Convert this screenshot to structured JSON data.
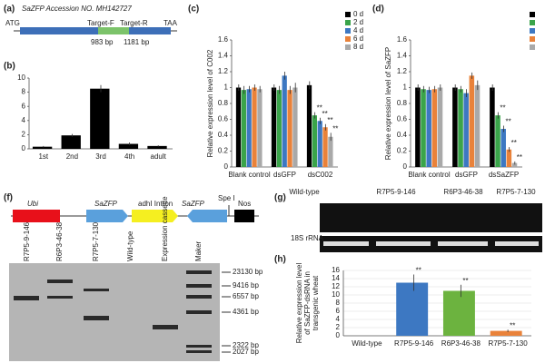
{
  "chart_data": [
    {
      "type": "bar",
      "label": "(b)",
      "categories": [
        "1st",
        "2nd",
        "3rd",
        "4th",
        "adult"
      ],
      "series": [
        {
          "color": "#000000",
          "values": [
            0.3,
            1.9,
            8.5,
            0.7,
            0.4
          ],
          "errors": [
            0.1,
            0.2,
            0.5,
            0.2,
            0.1
          ]
        }
      ],
      "ylim": [
        0,
        10
      ],
      "yticks": [
        0,
        2,
        4,
        6,
        8,
        10
      ]
    },
    {
      "type": "bar",
      "label": "(c)",
      "ylabel": "Relative expression level of C002",
      "categories": [
        "Blank control",
        "dsGFP",
        "dsC002"
      ],
      "series": [
        {
          "name": "0 d",
          "color": "#000000",
          "values": [
            1,
            1,
            1.03
          ],
          "errors": [
            0.04,
            0.04,
            0.05
          ],
          "marks": [
            null,
            null,
            null
          ]
        },
        {
          "name": "2 d",
          "color": "#3aa44a",
          "values": [
            0.97,
            0.97,
            0.65
          ],
          "errors": [
            0.05,
            0.05,
            0.04
          ],
          "marks": [
            null,
            null,
            "**"
          ]
        },
        {
          "name": "4 d",
          "color": "#3d78c2",
          "values": [
            0.98,
            1.15,
            0.58
          ],
          "errors": [
            0.04,
            0.05,
            0.04
          ],
          "marks": [
            null,
            null,
            "**"
          ]
        },
        {
          "name": "6 d",
          "color": "#e9823a",
          "values": [
            1,
            0.97,
            0.5
          ],
          "errors": [
            0.04,
            0.05,
            0.04
          ],
          "marks": [
            null,
            null,
            "**"
          ]
        },
        {
          "name": "8 d",
          "color": "#a9a9a9",
          "values": [
            0.98,
            1,
            0.38
          ],
          "errors": [
            0.04,
            0.06,
            0.05
          ],
          "marks": [
            null,
            null,
            "**"
          ]
        }
      ],
      "ylim": [
        0,
        1.6
      ],
      "yticks": [
        0,
        0.2,
        0.4,
        0.6,
        0.8,
        1,
        1.2,
        1.4,
        1.6
      ],
      "legend": "right"
    },
    {
      "type": "bar",
      "label": "(d)",
      "ylabel": "Relative expression level of SaZFP",
      "categories": [
        "Blank control",
        "dsGFP",
        "dsSaZFP"
      ],
      "series": [
        {
          "color": "#000000",
          "values": [
            1,
            1,
            1
          ],
          "errors": [
            0.04,
            0.04,
            0.04
          ],
          "marks": [
            null,
            null,
            null
          ]
        },
        {
          "color": "#3aa44a",
          "values": [
            0.98,
            0.98,
            0.65
          ],
          "errors": [
            0.04,
            0.04,
            0.04
          ],
          "marks": [
            null,
            null,
            "**"
          ]
        },
        {
          "color": "#3d78c2",
          "values": [
            0.97,
            0.93,
            0.48
          ],
          "errors": [
            0.04,
            0.05,
            0.04
          ],
          "marks": [
            null,
            null,
            "**"
          ]
        },
        {
          "color": "#e9823a",
          "values": [
            0.98,
            1.15,
            0.22
          ],
          "errors": [
            0.04,
            0.04,
            0.03
          ],
          "marks": [
            null,
            null,
            "**"
          ]
        },
        {
          "color": "#a9a9a9",
          "values": [
            1,
            1.03,
            0.05
          ],
          "errors": [
            0.04,
            0.06,
            0.02
          ],
          "marks": [
            null,
            null,
            "**"
          ]
        }
      ],
      "ylim": [
        0,
        1.6
      ],
      "yticks": [
        0,
        0.2,
        0.4,
        0.6,
        0.8,
        1,
        1.2,
        1.4,
        1.6
      ],
      "legend": "right"
    },
    {
      "type": "bar",
      "label": "(h)",
      "ylabel": [
        "Relative expression level",
        "of SaZFP-dsRNA in",
        "transgenic wheat"
      ],
      "categories": [
        "Wild-type",
        "R7P5-9-146",
        "R6P3-46-38",
        "R7P5-7-130"
      ],
      "series": [
        {
          "values": [
            0,
            13,
            11,
            1.2
          ],
          "errors": [
            0,
            2,
            1.5,
            0.3
          ],
          "colors": [
            "#3d78c2",
            "#3d78c2",
            "#6cb33f",
            "#e9823a"
          ],
          "marks": [
            null,
            "**",
            "**",
            "**"
          ]
        }
      ],
      "ylim": [
        0,
        16
      ],
      "yticks": [
        0,
        2,
        4,
        6,
        8,
        10,
        12,
        14,
        16
      ],
      "grid": true
    }
  ],
  "diagram_a": {
    "label": "(a)",
    "title": "SaZFP Accession NO. MH142727",
    "start": "ATG",
    "end": "TAA",
    "target_f": "Target-F",
    "target_r": "Target-R",
    "pos_f": "983 bp",
    "pos_r": "1181 bp"
  },
  "diagram_f": {
    "label": "(f)",
    "parts": [
      "Ubi",
      "SaZFP",
      "adhI Intron",
      "SaZFP",
      "Spe I",
      "Nos"
    ],
    "lanes": [
      "R7P5-9-146",
      "R6P3-46-38",
      "R7P5-7-130",
      "Wild-type",
      "Expression cassette",
      "Maker"
    ],
    "markers": [
      "23130 bp",
      "9416 bp",
      "6557 bp",
      "4361 bp",
      "2322 bp",
      "2027 bp"
    ]
  },
  "gel_g": {
    "label": "(g)",
    "lanes": [
      "Wild-type",
      "R7P5-9-146",
      "R6P3-46-38",
      "R7P5-7-130"
    ],
    "control": "18S rRNA"
  }
}
